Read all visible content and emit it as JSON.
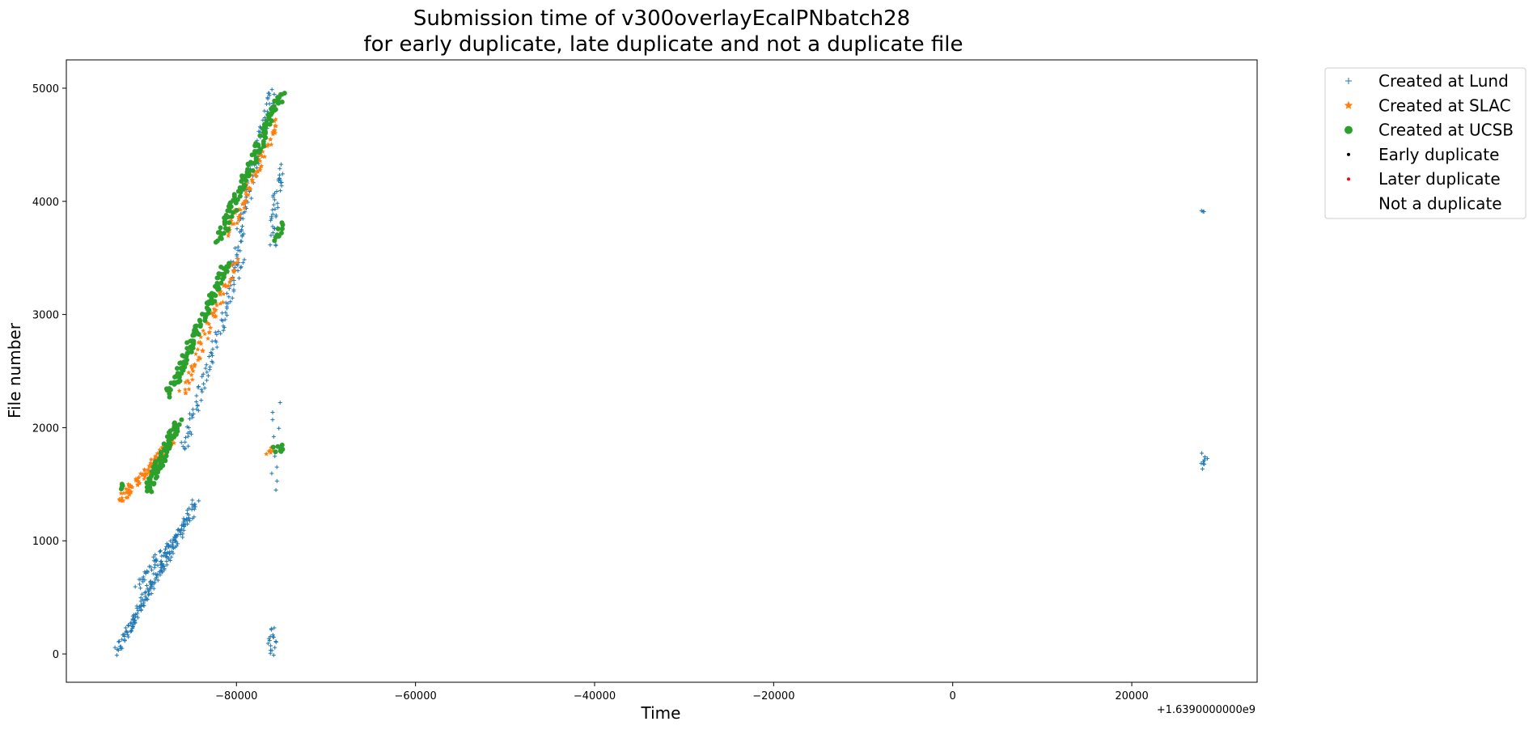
{
  "chart_data": {
    "type": "scatter",
    "title_line1": "Submission time of v300overlayEcalPNbatch28",
    "title_line2": "for early duplicate, late duplicate and not a duplicate file",
    "xlabel": "Time",
    "ylabel": "File number",
    "x_offset_label": "+1.6390000000e9",
    "xlim": [
      -99000,
      34000
    ],
    "ylim": [
      -250,
      5250
    ],
    "x_ticks": [
      -80000,
      -60000,
      -40000,
      -20000,
      0,
      20000
    ],
    "x_tick_labels": [
      "−80000",
      "−60000",
      "−40000",
      "−20000",
      "0",
      "20000"
    ],
    "y_ticks": [
      0,
      1000,
      2000,
      3000,
      4000,
      5000
    ],
    "y_tick_labels": [
      "0",
      "1000",
      "2000",
      "3000",
      "4000",
      "5000"
    ],
    "grid": false,
    "legend_position": "outside-top-right",
    "legend": [
      {
        "label": "Created at Lund",
        "marker": "plus",
        "color": "#1f77b4"
      },
      {
        "label": "Created at SLAC",
        "marker": "star",
        "color": "#ff7f0e"
      },
      {
        "label": "Created at UCSB",
        "marker": "circle",
        "color": "#2ca02c"
      },
      {
        "label": "Early duplicate",
        "marker": "dot",
        "color": "#000000"
      },
      {
        "label": "Later duplicate",
        "marker": "dot",
        "color": "#ff0000"
      },
      {
        "label": "Not a duplicate",
        "marker": "none",
        "color": "#ffffff"
      }
    ],
    "series": [
      {
        "name": "Created at Lund",
        "color": "#1f77b4",
        "marker": "plus",
        "clusters": [
          {
            "x0": -93500,
            "y0": 0,
            "x1": -84500,
            "y1": 1350,
            "n": 120
          },
          {
            "x0": -92500,
            "y0": 150,
            "x1": -85000,
            "y1": 1250,
            "n": 80
          },
          {
            "x0": -91000,
            "y0": 600,
            "x1": -87500,
            "y1": 1000,
            "n": 40
          },
          {
            "x0": -86000,
            "y0": 1800,
            "x1": -79500,
            "y1": 3500,
            "n": 90
          },
          {
            "x0": -80500,
            "y0": 3400,
            "x1": -76000,
            "y1": 5000,
            "n": 90
          },
          {
            "x0": -76000,
            "y0": 3600,
            "x1": -75200,
            "y1": 4300,
            "n": 40
          },
          {
            "x0": -76200,
            "y0": 0,
            "x1": -75800,
            "y1": 220,
            "n": 18
          },
          {
            "x0": -75700,
            "y0": 1450,
            "x1": -75500,
            "y1": 2200,
            "n": 12
          },
          {
            "x0": 27900,
            "y0": 1650,
            "x1": 28100,
            "y1": 1760,
            "n": 10
          },
          {
            "x0": 27900,
            "y0": 3900,
            "x1": 28100,
            "y1": 3910,
            "n": 3
          }
        ]
      },
      {
        "name": "Created at SLAC",
        "color": "#ff7f0e",
        "marker": "star",
        "clusters": [
          {
            "x0": -93000,
            "y0": 1350,
            "x1": -87000,
            "y1": 1900,
            "n": 90
          },
          {
            "x0": -86000,
            "y0": 2300,
            "x1": -80000,
            "y1": 3500,
            "n": 70
          },
          {
            "x0": -81000,
            "y0": 3700,
            "x1": -75500,
            "y1": 4700,
            "n": 70
          },
          {
            "x0": -76500,
            "y0": 1780,
            "x1": -75800,
            "y1": 1820,
            "n": 6
          }
        ]
      },
      {
        "name": "Created at UCSB",
        "color": "#2ca02c",
        "marker": "circle",
        "clusters": [
          {
            "x0": -93000,
            "y0": 1470,
            "x1": -92500,
            "y1": 1480,
            "n": 4
          },
          {
            "x0": -90000,
            "y0": 1450,
            "x1": -86500,
            "y1": 2050,
            "n": 90
          },
          {
            "x0": -87500,
            "y0": 2300,
            "x1": -81000,
            "y1": 3450,
            "n": 110
          },
          {
            "x0": -82000,
            "y0": 3650,
            "x1": -75000,
            "y1": 4950,
            "n": 120
          },
          {
            "x0": -75500,
            "y0": 3650,
            "x1": -74800,
            "y1": 3800,
            "n": 10
          },
          {
            "x0": -75500,
            "y0": 1800,
            "x1": -74800,
            "y1": 1830,
            "n": 8
          }
        ]
      }
    ]
  }
}
